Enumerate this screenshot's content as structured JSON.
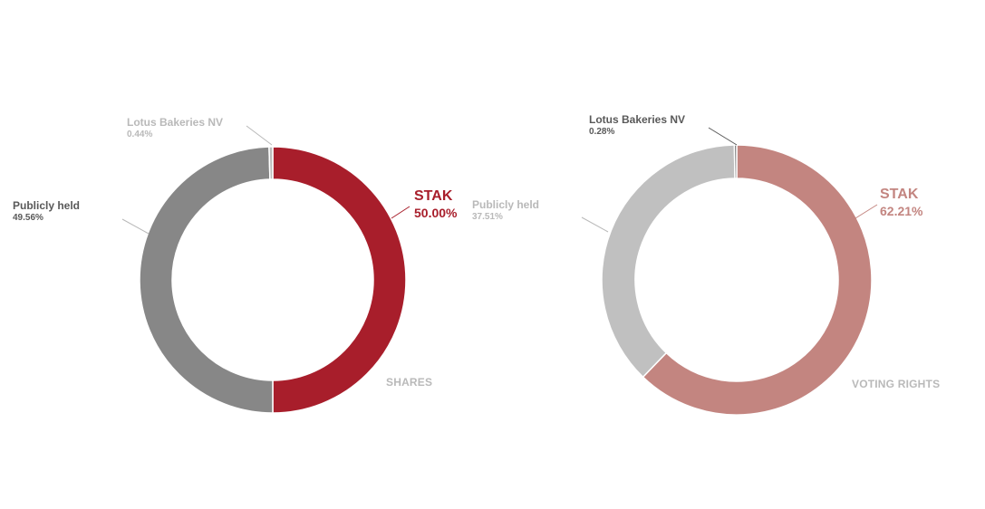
{
  "colors": {
    "stak_shares": "#a81e2b",
    "stak_voting": "#c38580",
    "public_shares": "#878787",
    "public_voting": "#c0c0c0",
    "lotus_shares": "#bcbcbc",
    "lotus_voting": "#6e6e6e",
    "leader": "#b0b0b0",
    "label_dark": "#595959",
    "label_light": "#b9b9b9"
  },
  "chart_data": [
    {
      "type": "pie",
      "caption": "SHARES",
      "series": [
        {
          "values": [
            50.0,
            49.56,
            0.44
          ],
          "labels": [
            "STAK",
            "Publicly held",
            "Lotus Bakeries NV"
          ],
          "display": [
            "50.00%",
            "49.56%",
            "0.44%"
          ]
        }
      ]
    },
    {
      "type": "pie",
      "caption": "VOTING RIGHTS",
      "series": [
        {
          "values": [
            62.21,
            37.51,
            0.28
          ],
          "labels": [
            "STAK",
            "Publicly held",
            "Lotus Bakeries NV"
          ],
          "display": [
            "62.21%",
            "37.51%",
            "0.28%"
          ]
        }
      ]
    }
  ]
}
